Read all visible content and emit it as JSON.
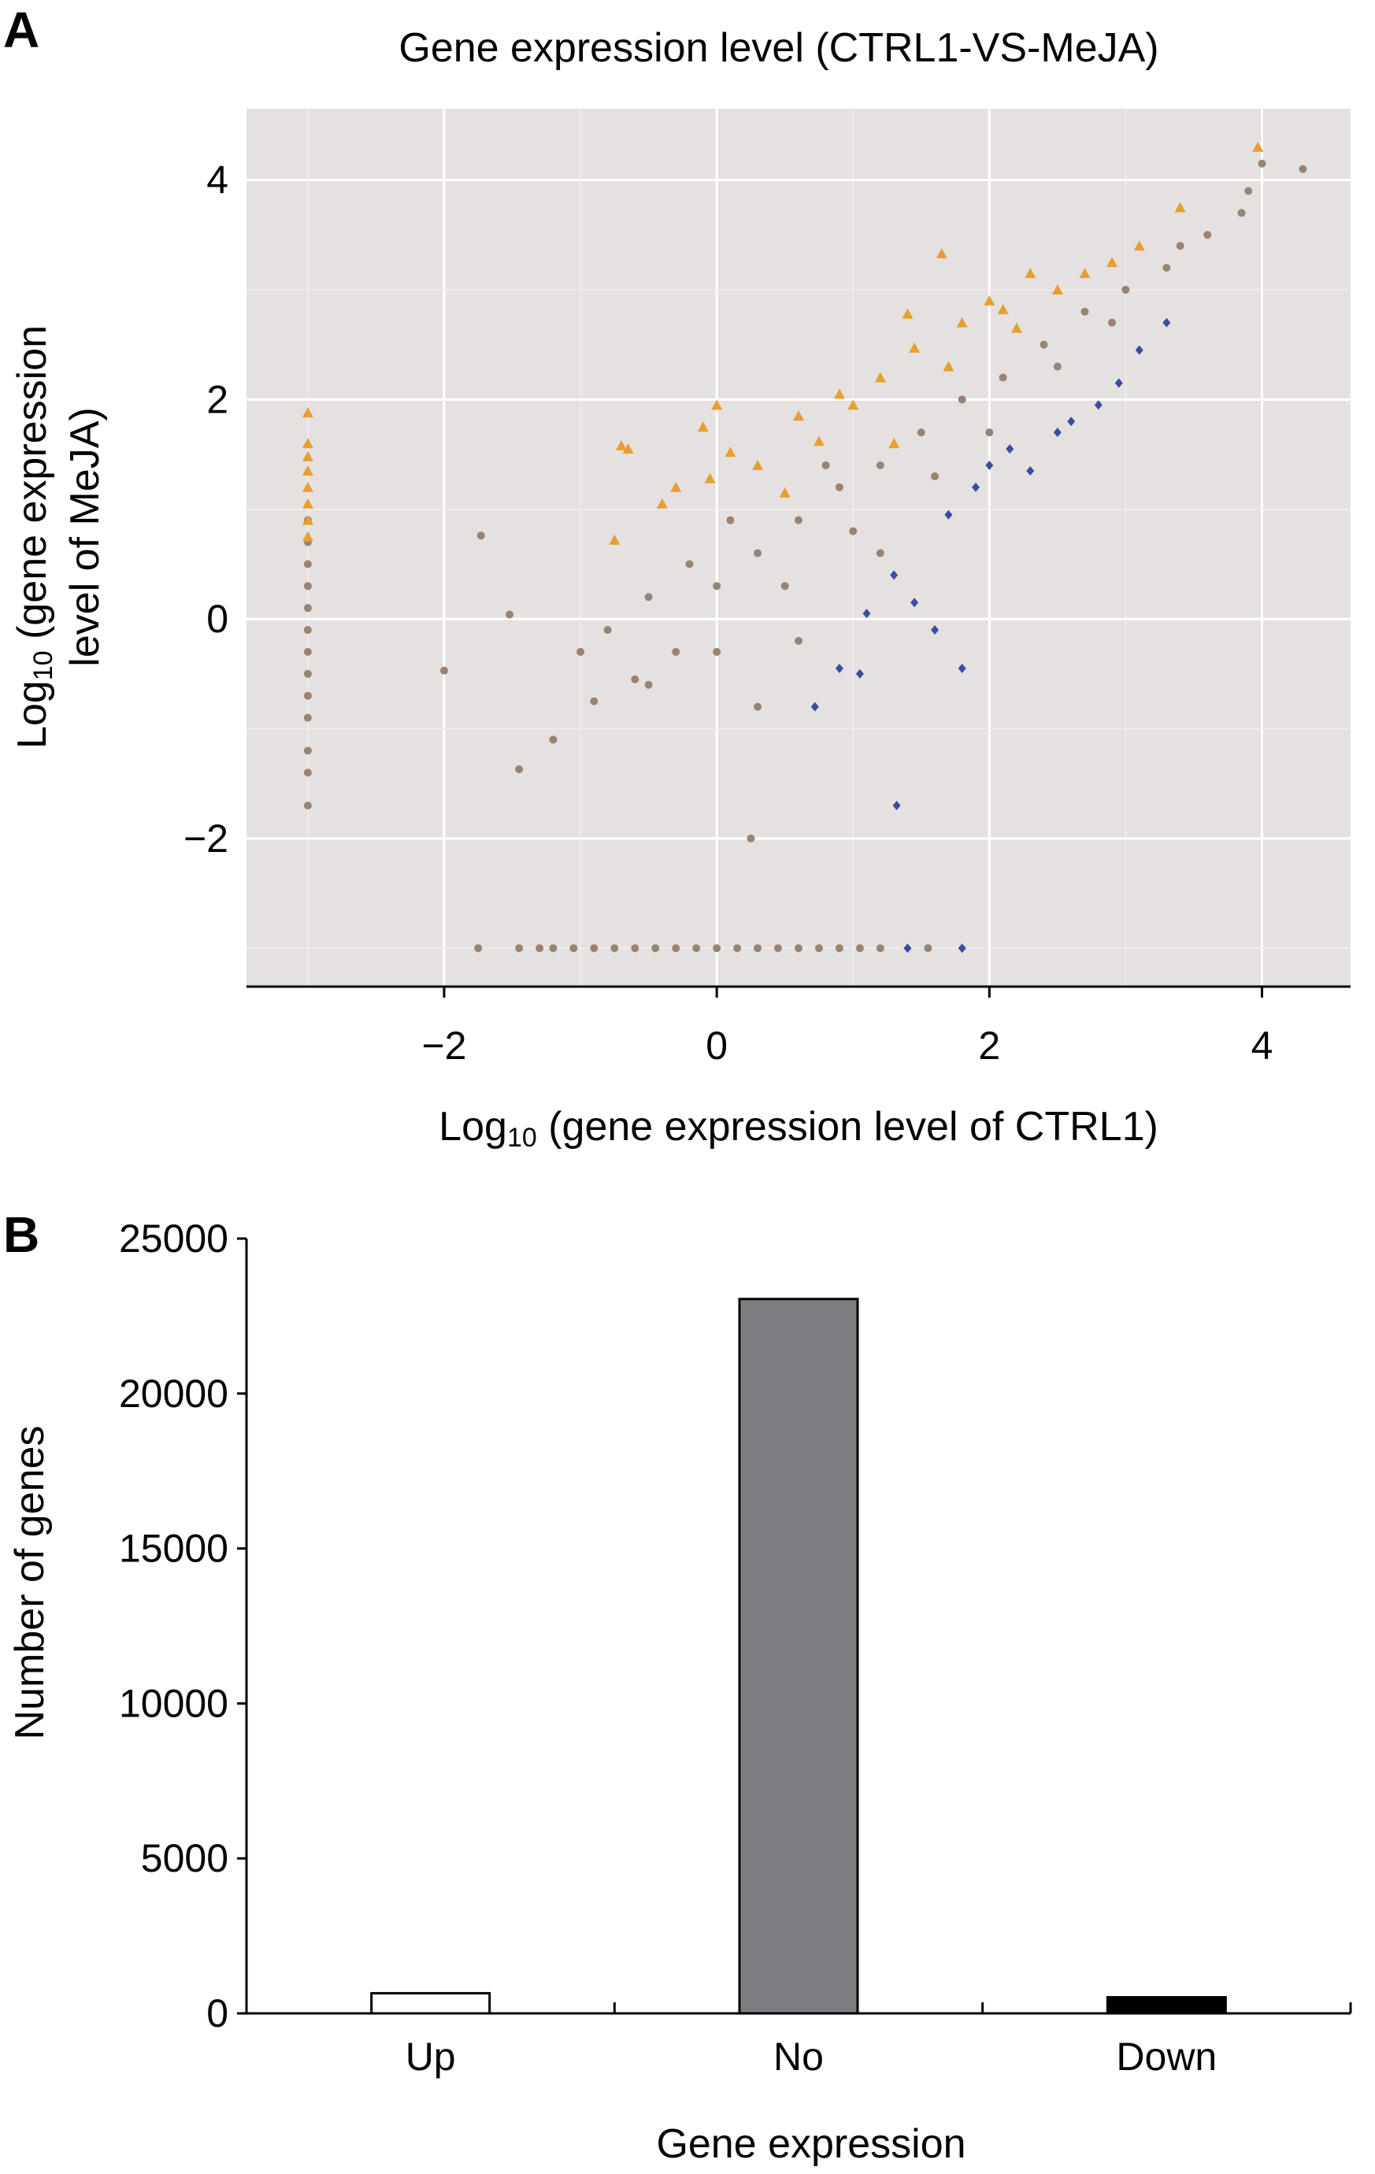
{
  "chart_data": [
    {
      "panel_label": "A",
      "type": "scatter",
      "title": "Gene expression level (CTRL1-VS-MeJA)",
      "xlabel": {
        "prefix": "Log",
        "subscript": "10",
        "suffix": " (gene expression level of CTRL1)"
      },
      "ylabel": {
        "line1_prefix": "Log",
        "line1_subscript": "10",
        "line1_suffix": " (gene expression",
        "line2": "level of MeJA)"
      },
      "xlim": [
        -3.45,
        4.65
      ],
      "ylim": [
        -3.35,
        4.65
      ],
      "xticks": [
        -2,
        0,
        2,
        4
      ],
      "yticks": [
        -2,
        0,
        2,
        4
      ],
      "xtick_labels": [
        "−2",
        "0",
        "2",
        "4"
      ],
      "ytick_labels": [
        "−2",
        "0",
        "2",
        "4"
      ],
      "grid": true,
      "background": "#e5e1e1",
      "series": [
        {
          "color": "#978474",
          "marker": "circle",
          "points": [
            [
              -3,
              0.9
            ],
            [
              -3,
              0.7
            ],
            [
              -3,
              0.5
            ],
            [
              -3,
              0.3
            ],
            [
              -3,
              0.1
            ],
            [
              -3,
              -0.1
            ],
            [
              -3,
              -0.3
            ],
            [
              -3,
              -0.5
            ],
            [
              -3,
              -0.7
            ],
            [
              -3,
              -0.9
            ],
            [
              -3,
              -1.2
            ],
            [
              -3,
              -1.4
            ],
            [
              -3,
              -1.7
            ],
            [
              -1.73,
              0.76
            ],
            [
              -1.52,
              0.04
            ],
            [
              -2.0,
              -0.47
            ],
            [
              0.25,
              -2.0
            ],
            [
              -1.45,
              -1.37
            ],
            [
              -1.2,
              -1.1
            ],
            [
              -0.9,
              -0.75
            ],
            [
              -0.6,
              -0.55
            ],
            [
              -0.3,
              -0.3
            ],
            [
              -1.0,
              -0.3
            ],
            [
              -0.5,
              0.2
            ],
            [
              0.0,
              0.3
            ],
            [
              0.3,
              0.6
            ],
            [
              0.6,
              0.9
            ],
            [
              0.9,
              1.2
            ],
            [
              1.2,
              1.4
            ],
            [
              1.5,
              1.7
            ],
            [
              1.8,
              2.0
            ],
            [
              2.1,
              2.2
            ],
            [
              2.4,
              2.5
            ],
            [
              2.7,
              2.8
            ],
            [
              3.0,
              3.0
            ],
            [
              3.3,
              3.2
            ],
            [
              3.6,
              3.5
            ],
            [
              3.9,
              3.9
            ],
            [
              4.0,
              4.15
            ],
            [
              4.3,
              4.1
            ],
            [
              3.85,
              3.7
            ],
            [
              3.4,
              3.4
            ],
            [
              2.9,
              2.7
            ],
            [
              2.5,
              2.3
            ],
            [
              2.0,
              1.7
            ],
            [
              1.6,
              1.3
            ],
            [
              1.0,
              0.8
            ],
            [
              0.5,
              0.3
            ],
            [
              0.0,
              -0.3
            ],
            [
              -0.5,
              -0.6
            ],
            [
              0.3,
              -0.8
            ],
            [
              0.6,
              -0.2
            ],
            [
              1.2,
              0.6
            ],
            [
              -0.2,
              0.5
            ],
            [
              -0.8,
              -0.1
            ],
            [
              0.1,
              0.9
            ],
            [
              0.8,
              1.4
            ]
          ]
        },
        {
          "color": "#e79f2f",
          "marker": "triangle",
          "points": [
            [
              -3,
              1.88
            ],
            [
              -3,
              1.6
            ],
            [
              -3,
              1.48
            ],
            [
              -3,
              1.35
            ],
            [
              -3,
              1.2
            ],
            [
              -3,
              1.05
            ],
            [
              -3,
              0.9
            ],
            [
              -3,
              0.75
            ],
            [
              -0.65,
              1.55
            ],
            [
              -0.7,
              1.58
            ],
            [
              -0.1,
              1.75
            ],
            [
              0.0,
              1.95
            ],
            [
              -0.4,
              1.05
            ],
            [
              -0.3,
              1.2
            ],
            [
              -0.05,
              1.28
            ],
            [
              0.1,
              1.52
            ],
            [
              0.3,
              1.4
            ],
            [
              0.6,
              1.85
            ],
            [
              0.75,
              1.62
            ],
            [
              0.9,
              2.05
            ],
            [
              1.0,
              1.95
            ],
            [
              1.2,
              2.2
            ],
            [
              1.45,
              2.47
            ],
            [
              1.4,
              2.78
            ],
            [
              1.65,
              3.33
            ],
            [
              1.8,
              2.7
            ],
            [
              2.0,
              2.9
            ],
            [
              2.1,
              2.82
            ],
            [
              2.3,
              3.15
            ],
            [
              2.5,
              3.0
            ],
            [
              2.7,
              3.15
            ],
            [
              2.9,
              3.25
            ],
            [
              3.1,
              3.4
            ],
            [
              3.4,
              3.75
            ],
            [
              3.97,
              4.3
            ],
            [
              1.3,
              1.6
            ],
            [
              1.7,
              2.3
            ],
            [
              2.2,
              2.65
            ],
            [
              -0.75,
              0.72
            ],
            [
              0.5,
              1.15
            ]
          ]
        },
        {
          "color": "#3a4ea0",
          "marker": "diamond",
          "points": [
            [
              1.3,
              0.4
            ],
            [
              1.45,
              0.15
            ],
            [
              1.6,
              -0.1
            ],
            [
              1.05,
              -0.5
            ],
            [
              1.32,
              -1.7
            ],
            [
              1.8,
              -0.45
            ],
            [
              0.9,
              -0.45
            ],
            [
              2.3,
              1.35
            ],
            [
              2.6,
              1.8
            ],
            [
              2.8,
              1.95
            ],
            [
              2.95,
              2.15
            ],
            [
              3.1,
              2.45
            ],
            [
              3.3,
              2.7
            ],
            [
              1.7,
              0.95
            ],
            [
              2.0,
              1.4
            ],
            [
              1.9,
              1.2
            ],
            [
              2.5,
              1.7
            ],
            [
              0.72,
              -0.8
            ],
            [
              1.4,
              -3.0
            ],
            [
              1.8,
              -3.0
            ],
            [
              1.1,
              0.05
            ],
            [
              2.15,
              1.55
            ]
          ]
        },
        {
          "color": "#978474",
          "marker": "circle",
          "points": [
            [
              -1.75,
              -3.0
            ],
            [
              -1.45,
              -3.0
            ],
            [
              -1.3,
              -3.0
            ],
            [
              -1.2,
              -3.0
            ],
            [
              -1.05,
              -3.0
            ],
            [
              -0.9,
              -3.0
            ],
            [
              -0.75,
              -3.0
            ],
            [
              -0.6,
              -3.0
            ],
            [
              -0.45,
              -3.0
            ],
            [
              -0.3,
              -3.0
            ],
            [
              -0.15,
              -3.0
            ],
            [
              0.0,
              -3.0
            ],
            [
              0.15,
              -3.0
            ],
            [
              0.3,
              -3.0
            ],
            [
              0.45,
              -3.0
            ],
            [
              0.6,
              -3.0
            ],
            [
              0.75,
              -3.0
            ],
            [
              0.9,
              -3.0
            ],
            [
              1.05,
              -3.0
            ],
            [
              1.2,
              -3.0
            ],
            [
              1.55,
              -3.0
            ]
          ]
        }
      ]
    },
    {
      "panel_label": "B",
      "type": "bar",
      "categories": [
        "Up",
        "No",
        "Down"
      ],
      "values": [
        650,
        23050,
        520
      ],
      "bar_colors": [
        "#ffffff",
        "#7e7c80",
        "#000000"
      ],
      "xlabel": "Gene expression",
      "ylabel": "Number of genes",
      "ylim": [
        0,
        25000
      ],
      "yticks": [
        0,
        5000,
        10000,
        15000,
        20000,
        25000
      ],
      "ytick_labels": [
        "0",
        "5000",
        "10000",
        "15000",
        "20000",
        "25000"
      ]
    }
  ]
}
